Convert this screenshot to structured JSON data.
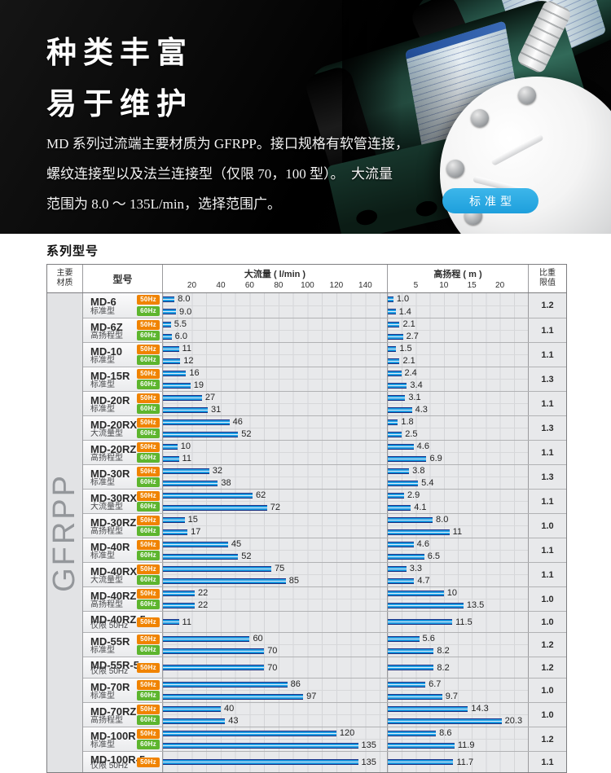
{
  "hero": {
    "title_lines": [
      "种类丰富",
      "易于维护"
    ],
    "description_lines": [
      "MD 系列过流端主要材质为 GFRPP。接口规格有软管连接，",
      "螺纹连接型以及法兰连接型（仅限 70，100 型）。　大流量",
      "范围为 8.0 ～ 135L/min，选择范围广。"
    ],
    "badge_label": "标准型"
  },
  "section": {
    "title": "系列型号"
  },
  "colors": {
    "hz50_badge": "#f08300",
    "hz60_badge": "#5db52e",
    "badge_blue": "#29aae2",
    "bar_dark": "#1a2f86",
    "bar_light": "#1f9ce2"
  },
  "table": {
    "header": {
      "material": [
        "主要",
        "材质"
      ],
      "model": "型号",
      "flow_title": "大流量 ( l/min )",
      "head_title": "高扬程 ( m )",
      "ratio": [
        "比重",
        "限值"
      ]
    },
    "material_label": "GFRPP",
    "flow_axis": {
      "ticks": [
        "20",
        "40",
        "60",
        "80",
        "100",
        "120",
        "140"
      ],
      "max": 155
    },
    "head_axis": {
      "ticks": [
        "5",
        "10",
        "15",
        "20"
      ],
      "max": 25
    },
    "rows": [
      {
        "model": "MD-6",
        "subtype": "标准型",
        "ratio": "1.2",
        "bars": [
          {
            "hz": "50Hz",
            "flow": "8.0",
            "head": "1.0"
          },
          {
            "hz": "60Hz",
            "flow": "9.0",
            "head": "1.4"
          }
        ]
      },
      {
        "model": "MD-6Z",
        "subtype": "高扬程型",
        "ratio": "1.1",
        "bars": [
          {
            "hz": "50Hz",
            "flow": "5.5",
            "head": "2.1"
          },
          {
            "hz": "60Hz",
            "flow": "6.0",
            "head": "2.7"
          }
        ]
      },
      {
        "model": "MD-10",
        "subtype": "标准型",
        "ratio": "1.1",
        "bars": [
          {
            "hz": "50Hz",
            "flow": "11",
            "head": "1.5"
          },
          {
            "hz": "60Hz",
            "flow": "12",
            "head": "2.1"
          }
        ]
      },
      {
        "model": "MD-15R",
        "subtype": "标准型",
        "ratio": "1.3",
        "bars": [
          {
            "hz": "50Hz",
            "flow": "16",
            "head": "2.4"
          },
          {
            "hz": "60Hz",
            "flow": "19",
            "head": "3.4"
          }
        ]
      },
      {
        "model": "MD-20R",
        "subtype": "标准型",
        "ratio": "1.1",
        "bars": [
          {
            "hz": "50Hz",
            "flow": "27",
            "head": "3.1"
          },
          {
            "hz": "60Hz",
            "flow": "31",
            "head": "4.3"
          }
        ]
      },
      {
        "model": "MD-20RX",
        "subtype": "大流量型",
        "ratio": "1.3",
        "bars": [
          {
            "hz": "50Hz",
            "flow": "46",
            "head": "1.8"
          },
          {
            "hz": "60Hz",
            "flow": "52",
            "head": "2.5"
          }
        ]
      },
      {
        "model": "MD-20RZ",
        "subtype": "高扬程型",
        "ratio": "1.1",
        "bars": [
          {
            "hz": "50Hz",
            "flow": "10",
            "head": "4.6"
          },
          {
            "hz": "60Hz",
            "flow": "11",
            "head": "6.9"
          }
        ]
      },
      {
        "model": "MD-30R",
        "subtype": "标准型",
        "ratio": "1.3",
        "bars": [
          {
            "hz": "50Hz",
            "flow": "32",
            "head": "3.8"
          },
          {
            "hz": "60Hz",
            "flow": "38",
            "head": "5.4"
          }
        ]
      },
      {
        "model": "MD-30RX",
        "subtype": "大流量型",
        "ratio": "1.1",
        "bars": [
          {
            "hz": "50Hz",
            "flow": "62",
            "head": "2.9"
          },
          {
            "hz": "60Hz",
            "flow": "72",
            "head": "4.1"
          }
        ]
      },
      {
        "model": "MD-30RZ",
        "subtype": "高扬程型",
        "ratio": "1.0",
        "bars": [
          {
            "hz": "50Hz",
            "flow": "15",
            "head": "8.0"
          },
          {
            "hz": "60Hz",
            "flow": "17",
            "head": "11"
          }
        ]
      },
      {
        "model": "MD-40R",
        "subtype": "标准型",
        "ratio": "1.1",
        "bars": [
          {
            "hz": "50Hz",
            "flow": "45",
            "head": "4.6"
          },
          {
            "hz": "60Hz",
            "flow": "52",
            "head": "6.5"
          }
        ]
      },
      {
        "model": "MD-40RX",
        "subtype": "大流量型",
        "ratio": "1.1",
        "bars": [
          {
            "hz": "50Hz",
            "flow": "75",
            "head": "3.3"
          },
          {
            "hz": "60Hz",
            "flow": "85",
            "head": "4.7"
          }
        ]
      },
      {
        "model": "MD-40RZ",
        "subtype": "高扬程型",
        "ratio": "1.0",
        "bars": [
          {
            "hz": "50Hz",
            "flow": "22",
            "head": "10"
          },
          {
            "hz": "60Hz",
            "flow": "22",
            "head": "13.5"
          }
        ]
      },
      {
        "model": "MD-40RZ-5",
        "subtype": "仅限 50Hz",
        "ratio": "1.0",
        "bars": [
          {
            "hz": "50Hz",
            "flow": "11",
            "head": "11.5"
          }
        ]
      },
      {
        "model": "MD-55R",
        "subtype": "标准型",
        "ratio": "1.2",
        "bars": [
          {
            "hz": "50Hz",
            "flow": "60",
            "head": "5.6"
          },
          {
            "hz": "60Hz",
            "flow": "70",
            "head": "8.2"
          }
        ]
      },
      {
        "model": "MD-55R-5",
        "subtype": "仅限 50Hz",
        "ratio": "1.2",
        "bars": [
          {
            "hz": "50Hz",
            "flow": "70",
            "head": "8.2"
          }
        ]
      },
      {
        "model": "MD-70R",
        "subtype": "标准型",
        "ratio": "1.0",
        "bars": [
          {
            "hz": "50Hz",
            "flow": "86",
            "head": "6.7"
          },
          {
            "hz": "60Hz",
            "flow": "97",
            "head": "9.7"
          }
        ]
      },
      {
        "model": "MD-70RZ",
        "subtype": "高扬程型",
        "ratio": "1.0",
        "bars": [
          {
            "hz": "50Hz",
            "flow": "40",
            "head": "14.3"
          },
          {
            "hz": "60Hz",
            "flow": "43",
            "head": "20.3"
          }
        ]
      },
      {
        "model": "MD-100R",
        "subtype": "标准型",
        "ratio": "1.2",
        "bars": [
          {
            "hz": "50Hz",
            "flow": "120",
            "head": "8.6"
          },
          {
            "hz": "60Hz",
            "flow": "135",
            "head": "11.9"
          }
        ]
      },
      {
        "model": "MD-100R-5",
        "subtype": "仅限 50Hz",
        "ratio": "1.1",
        "bars": [
          {
            "hz": "50Hz",
            "flow": "135",
            "head": "11.7"
          }
        ]
      }
    ]
  }
}
